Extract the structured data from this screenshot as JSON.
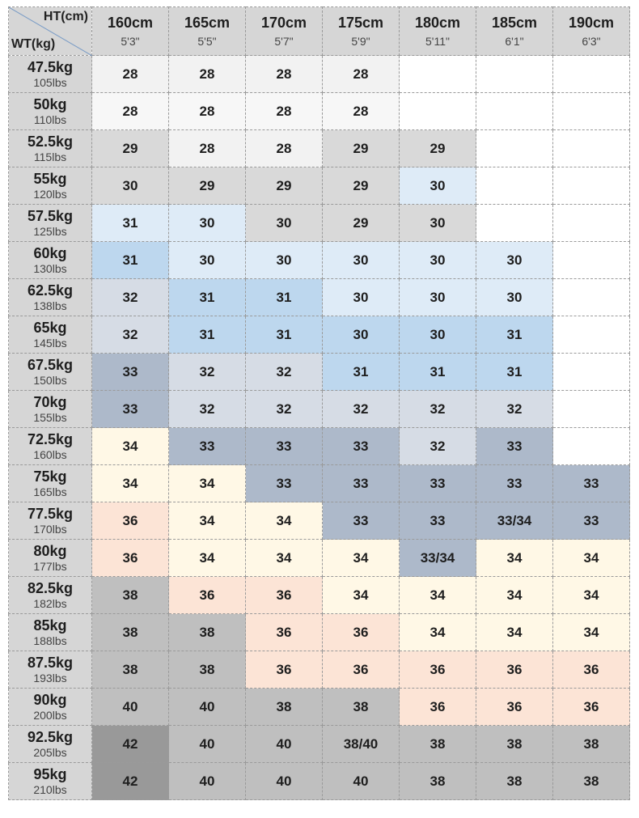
{
  "chart_data": {
    "type": "table",
    "corner": {
      "column_axis": "HT(cm)",
      "row_axis": "WT(kg)"
    },
    "columns": [
      {
        "cm": "160cm",
        "ft": "5'3\""
      },
      {
        "cm": "165cm",
        "ft": "5'5\""
      },
      {
        "cm": "170cm",
        "ft": "5'7\""
      },
      {
        "cm": "175cm",
        "ft": "5'9\""
      },
      {
        "cm": "180cm",
        "ft": "5'11\""
      },
      {
        "cm": "185cm",
        "ft": "6'1\""
      },
      {
        "cm": "190cm",
        "ft": "6'3\""
      }
    ],
    "rows": [
      {
        "kg": "47.5kg",
        "lbs": "105lbs",
        "values": [
          "28",
          "28",
          "28",
          "28",
          "",
          "",
          ""
        ]
      },
      {
        "kg": "50kg",
        "lbs": "110lbs",
        "values": [
          "28",
          "28",
          "28",
          "28",
          "",
          "",
          ""
        ]
      },
      {
        "kg": "52.5kg",
        "lbs": "115lbs",
        "values": [
          "29",
          "28",
          "28",
          "29",
          "29",
          "",
          ""
        ]
      },
      {
        "kg": "55kg",
        "lbs": "120lbs",
        "values": [
          "30",
          "29",
          "29",
          "29",
          "30",
          "",
          ""
        ]
      },
      {
        "kg": "57.5kg",
        "lbs": "125lbs",
        "values": [
          "31",
          "30",
          "30",
          "29",
          "30",
          "",
          ""
        ]
      },
      {
        "kg": "60kg",
        "lbs": "130lbs",
        "values": [
          "31",
          "30",
          "30",
          "30",
          "30",
          "30",
          ""
        ]
      },
      {
        "kg": "62.5kg",
        "lbs": "138lbs",
        "values": [
          "32",
          "31",
          "31",
          "30",
          "30",
          "30",
          ""
        ]
      },
      {
        "kg": "65kg",
        "lbs": "145lbs",
        "values": [
          "32",
          "31",
          "31",
          "30",
          "30",
          "31",
          ""
        ]
      },
      {
        "kg": "67.5kg",
        "lbs": "150lbs",
        "values": [
          "33",
          "32",
          "32",
          "31",
          "31",
          "31",
          ""
        ]
      },
      {
        "kg": "70kg",
        "lbs": "155lbs",
        "values": [
          "33",
          "32",
          "32",
          "32",
          "32",
          "32",
          ""
        ]
      },
      {
        "kg": "72.5kg",
        "lbs": "160lbs",
        "values": [
          "34",
          "33",
          "33",
          "33",
          "32",
          "33",
          ""
        ]
      },
      {
        "kg": "75kg",
        "lbs": "165lbs",
        "values": [
          "34",
          "34",
          "33",
          "33",
          "33",
          "33",
          "33"
        ]
      },
      {
        "kg": "77.5kg",
        "lbs": "170lbs",
        "values": [
          "36",
          "34",
          "34",
          "33",
          "33",
          "33/34",
          "33"
        ]
      },
      {
        "kg": "80kg",
        "lbs": "177lbs",
        "values": [
          "36",
          "34",
          "34",
          "34",
          "33/34",
          "34",
          "34"
        ]
      },
      {
        "kg": "82.5kg",
        "lbs": "182lbs",
        "values": [
          "38",
          "36",
          "36",
          "34",
          "34",
          "34",
          "34"
        ]
      },
      {
        "kg": "85kg",
        "lbs": "188lbs",
        "values": [
          "38",
          "38",
          "36",
          "36",
          "34",
          "34",
          "34"
        ]
      },
      {
        "kg": "87.5kg",
        "lbs": "193lbs",
        "values": [
          "38",
          "38",
          "36",
          "36",
          "36",
          "36",
          "36"
        ]
      },
      {
        "kg": "90kg",
        "lbs": "200lbs",
        "values": [
          "40",
          "40",
          "38",
          "38",
          "36",
          "36",
          "36"
        ]
      },
      {
        "kg": "92.5kg",
        "lbs": "205lbs",
        "values": [
          "42",
          "40",
          "40",
          "38/40",
          "38",
          "38",
          "38"
        ]
      },
      {
        "kg": "95kg",
        "lbs": "210lbs",
        "values": [
          "42",
          "40",
          "40",
          "40",
          "38",
          "38",
          "38"
        ]
      }
    ],
    "size_colors": {
      "28": "#f2f2f2",
      "29": "#d9d9d9",
      "30": "#deebf7",
      "31": "#bdd7ee",
      "32": "#d6dce5",
      "33": "#adb9ca",
      "33/34": "#adb9ca",
      "34": "#fff8e6",
      "36": "#fce4d6",
      "38": "#bfbfbf",
      "38/40": "#bfbfbf",
      "40": "#ababab",
      "42": "#999999"
    },
    "cell_overrides": {
      "1-0": "#f7f7f7",
      "1-1": "#f7f7f7",
      "1-2": "#f7f7f7",
      "1-3": "#f7f7f7",
      "5-0": "#bdd7ee",
      "4-2": "#d9d9d9",
      "4-3": "#d9d9d9",
      "4-4": "#d9d9d9",
      "3-0": "#d9d9d9",
      "4-0": "#deebf7",
      "7-3": "#bdd7ee",
      "7-4": "#bdd7ee",
      "8-3": "#bdd7ee",
      "8-4": "#bdd7ee",
      "8-5": "#bdd7ee",
      "10-4": "#d6dce5",
      "17-2": "#bfbfbf",
      "17-3": "#bfbfbf",
      "19-3": "#bfbfbf",
      "17-0": "#bfbfbf",
      "17-1": "#bfbfbf",
      "18-1": "#bfbfbf",
      "18-2": "#bfbfbf",
      "19-1": "#bfbfbf",
      "19-2": "#bfbfbf",
      "18-0": "#999999",
      "19-0": "#999999"
    },
    "empty_color": "#ffffff",
    "header_color": "#d6d6d6"
  }
}
